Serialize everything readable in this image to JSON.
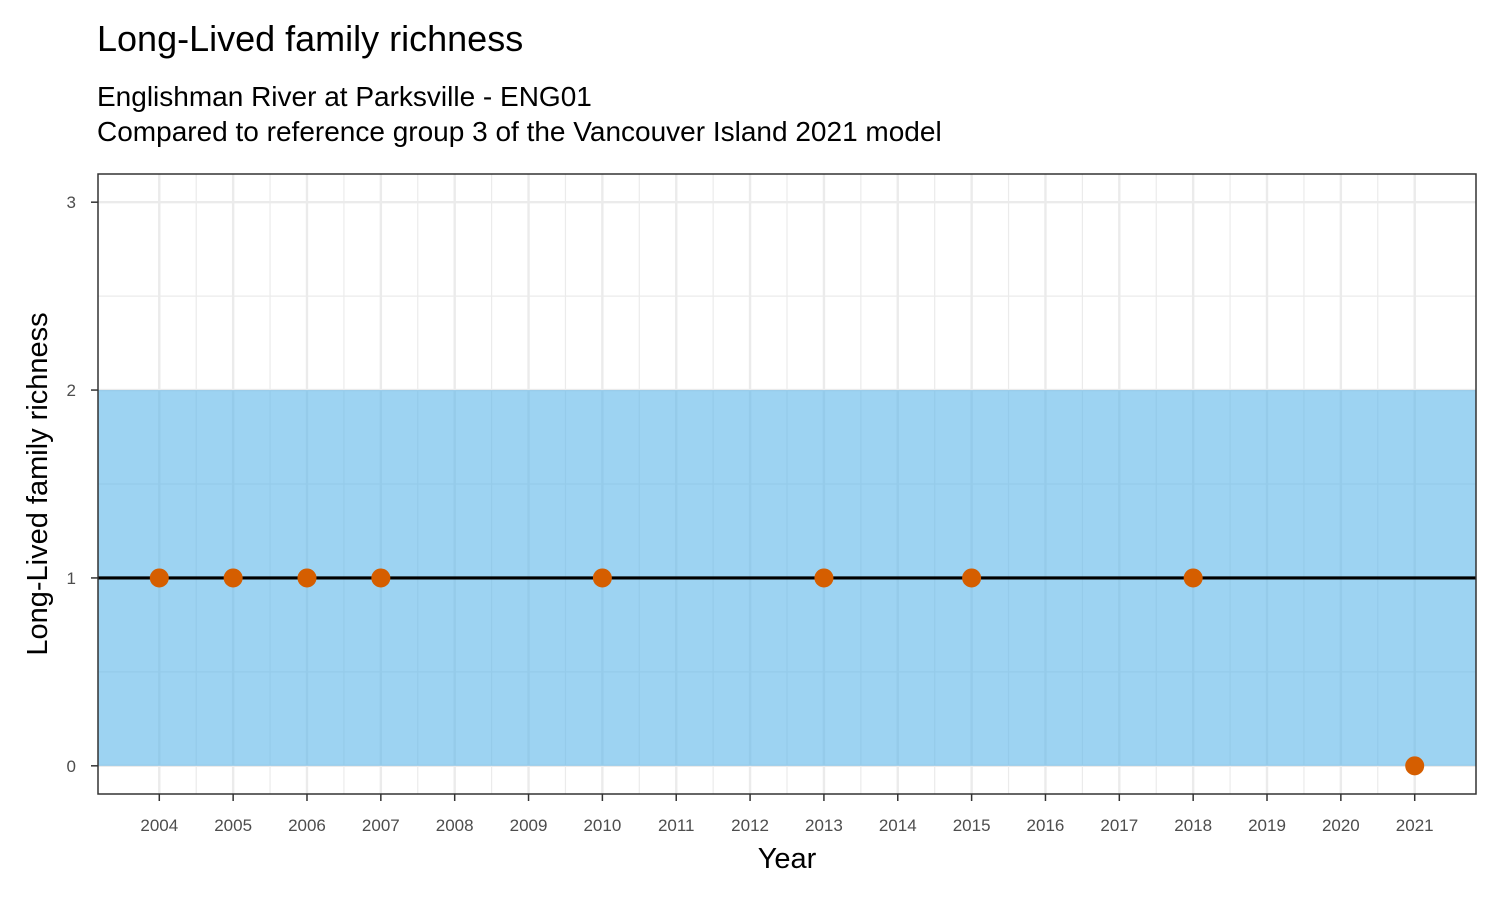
{
  "chart_data": {
    "type": "scatter",
    "title": "Long-Lived family richness",
    "subtitle": [
      "Englishman River at Parksville - ENG01",
      "Compared to reference group 3 of the Vancouver Island 2021 model"
    ],
    "xlabel": "Year",
    "ylabel": "Long-Lived family richness",
    "x_ticks": [
      "2004",
      "2005",
      "2006",
      "2007",
      "2008",
      "2009",
      "2010",
      "2011",
      "2012",
      "2013",
      "2014",
      "2015",
      "2016",
      "2017",
      "2018",
      "2019",
      "2020",
      "2021"
    ],
    "y_ticks": [
      "0",
      "1",
      "2",
      "3"
    ],
    "xlim": [
      2003.17,
      2021.83
    ],
    "ylim": [
      -0.15,
      3.15
    ],
    "grid": true,
    "reference_band": {
      "ymin": 0,
      "ymax": 2,
      "color": "#56b4e9"
    },
    "reference_line": {
      "y": 1,
      "color": "#000000"
    },
    "series": [
      {
        "color": "#d55e00",
        "points": [
          {
            "x": 2004,
            "y": 1
          },
          {
            "x": 2005,
            "y": 1
          },
          {
            "x": 2006,
            "y": 1
          },
          {
            "x": 2007,
            "y": 1
          },
          {
            "x": 2010,
            "y": 1
          },
          {
            "x": 2013,
            "y": 1
          },
          {
            "x": 2015,
            "y": 1
          },
          {
            "x": 2018,
            "y": 1
          },
          {
            "x": 2021,
            "y": 0
          }
        ]
      }
    ]
  }
}
